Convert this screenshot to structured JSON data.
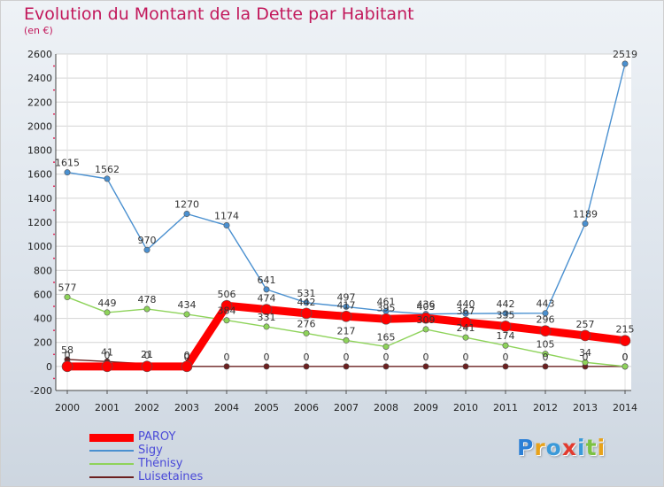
{
  "header": {
    "title": "Evolution du Montant de la Dette par Habitant",
    "subtitle": "(en €)"
  },
  "chart_data": {
    "type": "line",
    "title": "Evolution du Montant de la Dette par Habitant",
    "ylabel": "(en €)",
    "xlabel": "",
    "x": [
      "2000",
      "2001",
      "2002",
      "2003",
      "2004",
      "2005",
      "2006",
      "2007",
      "2008",
      "2009",
      "2010",
      "2011",
      "2012",
      "2013",
      "2014"
    ],
    "ylim": [
      -200,
      2600
    ],
    "yticks": [
      -200,
      0,
      200,
      400,
      600,
      800,
      1000,
      1200,
      1400,
      1600,
      1800,
      2000,
      2200,
      2400,
      2600
    ],
    "series": [
      {
        "name": "PAROY",
        "color": "#ff0000",
        "values": [
          0,
          0,
          0,
          0,
          506,
          474,
          442,
          417,
          395,
          403,
          367,
          335,
          296,
          257,
          215
        ]
      },
      {
        "name": "Sigy",
        "color": "#4a90d0",
        "values": [
          1615,
          1562,
          970,
          1270,
          1174,
          641,
          531,
          497,
          461,
          436,
          440,
          442,
          443,
          1189,
          2519
        ]
      },
      {
        "name": "Thénisy",
        "color": "#8ed35a",
        "values": [
          577,
          449,
          478,
          434,
          384,
          331,
          276,
          217,
          165,
          309,
          241,
          174,
          105,
          34,
          0
        ]
      },
      {
        "name": "Luisetaines",
        "color": "#6b1f1f",
        "values": [
          58,
          41,
          21,
          0,
          0,
          0,
          0,
          0,
          0,
          0,
          0,
          0,
          0,
          0,
          0
        ]
      }
    ]
  },
  "logo": {
    "letters": [
      "P",
      "r",
      "o",
      "x",
      "i",
      "t",
      "i"
    ],
    "colors": [
      "#2b7fd6",
      "#e8a21a",
      "#3b9ad9",
      "#e23a2e",
      "#3b9ad9",
      "#7cc243",
      "#e8a21a"
    ]
  }
}
